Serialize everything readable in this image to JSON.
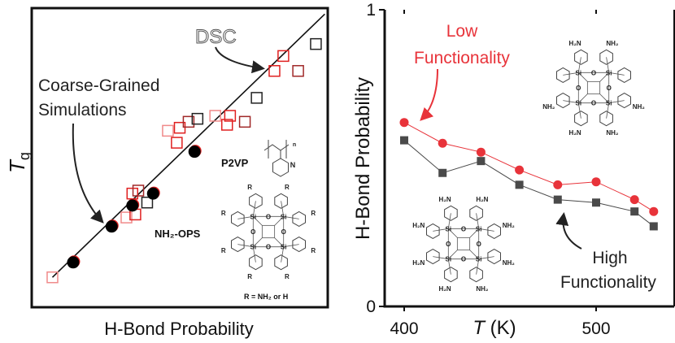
{
  "chart_data": [
    {
      "type": "scatter",
      "title": "",
      "xlabel": "H-Bond Probability",
      "ylabel_main": "T",
      "ylabel_sub": "g",
      "xlim": [
        0,
        1
      ],
      "ylim": [
        0,
        1
      ],
      "grid": false,
      "fit_line": {
        "x": [
          0.07,
          0.99
        ],
        "y": [
          0.1,
          0.98
        ]
      },
      "series": [
        {
          "name": "Coarse-Grained Simulations",
          "marker": "filled-circle",
          "color": "#000000",
          "points": [
            [
              0.14,
              0.15
            ],
            [
              0.27,
              0.27
            ],
            [
              0.34,
              0.34
            ],
            [
              0.41,
              0.38
            ],
            [
              0.55,
              0.52
            ]
          ]
        },
        {
          "name": "DSC",
          "marker": "open-square",
          "points": [
            {
              "x": 0.07,
              "y": 0.1,
              "color": "#f08a8a"
            },
            {
              "x": 0.32,
              "y": 0.3,
              "color": "#f08a8a"
            },
            {
              "x": 0.35,
              "y": 0.31,
              "color": "#e02020"
            },
            {
              "x": 0.34,
              "y": 0.38,
              "color": "#e02020"
            },
            {
              "x": 0.36,
              "y": 0.39,
              "color": "#a02828"
            },
            {
              "x": 0.39,
              "y": 0.35,
              "color": "#222222"
            },
            {
              "x": 0.46,
              "y": 0.59,
              "color": "#f08a8a"
            },
            {
              "x": 0.49,
              "y": 0.55,
              "color": "#e02020"
            },
            {
              "x": 0.5,
              "y": 0.6,
              "color": "#e02020"
            },
            {
              "x": 0.53,
              "y": 0.62,
              "color": "#a02828"
            },
            {
              "x": 0.56,
              "y": 0.63,
              "color": "#222222"
            },
            {
              "x": 0.62,
              "y": 0.64,
              "color": "#f08a8a"
            },
            {
              "x": 0.66,
              "y": 0.61,
              "color": "#e02020"
            },
            {
              "x": 0.67,
              "y": 0.64,
              "color": "#e02020"
            },
            {
              "x": 0.72,
              "y": 0.62,
              "color": "#a02828"
            },
            {
              "x": 0.76,
              "y": 0.7,
              "color": "#222222"
            },
            {
              "x": 0.82,
              "y": 0.79,
              "color": "#e02020"
            },
            {
              "x": 0.85,
              "y": 0.84,
              "color": "#e02020"
            },
            {
              "x": 0.9,
              "y": 0.79,
              "color": "#a02828"
            },
            {
              "x": 0.96,
              "y": 0.88,
              "color": "#222222"
            }
          ]
        }
      ],
      "annotations": {
        "dsc": "DSC",
        "cg_line1": "Coarse-Grained",
        "cg_line2": "Simulations",
        "p2vp": "P2VP",
        "nh2ops": "NH₂-OPS",
        "r_def": "R = NH₂ or H"
      }
    },
    {
      "type": "line",
      "title": "",
      "xlabel_main": "T",
      "xlabel_unit": " (K)",
      "ylabel": "H-Bond Probability",
      "xlim": [
        390,
        540
      ],
      "ylim": [
        0,
        1
      ],
      "xticks": [
        400,
        500
      ],
      "yticks": [
        0,
        1
      ],
      "grid": false,
      "x": [
        400,
        420,
        440,
        460,
        480,
        500,
        520,
        530
      ],
      "series": [
        {
          "name": "Low Functionality",
          "color": "#e8333a",
          "marker": "circle",
          "values": [
            0.62,
            0.55,
            0.52,
            0.46,
            0.41,
            0.42,
            0.36,
            0.32
          ]
        },
        {
          "name": "High Functionality",
          "color": "#4a4a4a",
          "marker": "square",
          "values": [
            0.56,
            0.45,
            0.49,
            0.41,
            0.36,
            0.35,
            0.32,
            0.27
          ]
        }
      ],
      "annotations": {
        "low_line1": "Low",
        "low_line2": "Functionality",
        "high_line1": "High",
        "high_line2": "Functionality"
      }
    }
  ],
  "atoms": {
    "si": "Si",
    "o": "O",
    "nh2": "NH₂",
    "h2n": "H₂N",
    "r": "R",
    "n": "N",
    "sub_n": "n"
  }
}
